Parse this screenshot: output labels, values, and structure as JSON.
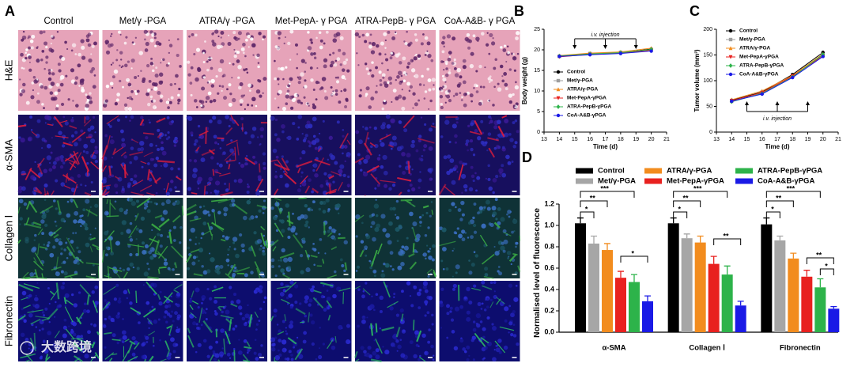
{
  "panel_labels": [
    "A",
    "B",
    "C",
    "D"
  ],
  "image_grid": {
    "columns": [
      "Control",
      "Met/γ -PGA",
      "ATRA/γ -PGA",
      "Met-PepA- γ PGA",
      "ATRA-PepB- γ PGA",
      "CoA-A&B- γ PGA"
    ],
    "rows": [
      "H&E",
      "α-SMA",
      "Collagen Ⅰ",
      "Fibronectin"
    ]
  },
  "watermark": "大数跨境",
  "chart_data": [
    {
      "type": "line",
      "xlabel": "Time (d)",
      "ylabel": "Body weight (g)",
      "x": [
        14,
        16,
        18,
        20
      ],
      "xlim": [
        13,
        21
      ],
      "xticks": [
        13,
        14,
        15,
        16,
        17,
        18,
        19,
        20,
        21
      ],
      "ylim": [
        0,
        25
      ],
      "yticks": [
        0,
        5,
        10,
        15,
        20,
        25
      ],
      "legend": "lower left",
      "annotation": {
        "text": "i.v. injection",
        "x": [
          15,
          17,
          19
        ]
      },
      "series": [
        {
          "name": "Control",
          "color": "#000000",
          "values": [
            18.5,
            19.0,
            19.3,
            20.2
          ]
        },
        {
          "name": "Met/γ-PGA",
          "color": "#9e9e9e",
          "values": [
            18.4,
            19.1,
            19.4,
            20.0
          ]
        },
        {
          "name": "ATRA/γ-PGA",
          "color": "#f28c1e",
          "values": [
            18.6,
            19.2,
            19.5,
            20.4
          ]
        },
        {
          "name": "Met-PepA-γPGA",
          "color": "#e8211f",
          "values": [
            18.3,
            18.9,
            19.2,
            19.9
          ]
        },
        {
          "name": "ATRA-PepB-γPGA",
          "color": "#2db34a",
          "values": [
            18.5,
            19.0,
            19.3,
            20.1
          ]
        },
        {
          "name": "CoA-A&B-γPGA",
          "color": "#1a1ae6",
          "values": [
            18.4,
            18.8,
            19.1,
            19.7
          ]
        }
      ]
    },
    {
      "type": "line",
      "xlabel": "Time (d)",
      "ylabel": "Tumor volume (mm³)",
      "x": [
        14,
        16,
        18,
        20
      ],
      "xlim": [
        13,
        21
      ],
      "xticks": [
        13,
        14,
        15,
        16,
        17,
        18,
        19,
        20,
        21
      ],
      "ylim": [
        0,
        200
      ],
      "yticks": [
        0,
        50,
        100,
        150,
        200
      ],
      "legend": "upper left",
      "annotation": {
        "text": "i.v. injection",
        "x": [
          15,
          17,
          19
        ]
      },
      "series": [
        {
          "name": "Control",
          "color": "#000000",
          "values": [
            62,
            78,
            112,
            155
          ]
        },
        {
          "name": "Met/γ-PGA",
          "color": "#9e9e9e",
          "values": [
            60,
            76,
            108,
            150
          ]
        },
        {
          "name": "ATRA/γ-PGA",
          "color": "#f28c1e",
          "values": [
            63,
            80,
            110,
            152
          ]
        },
        {
          "name": "Met-PepA-γPGA",
          "color": "#e8211f",
          "values": [
            61,
            77,
            109,
            148
          ]
        },
        {
          "name": "ATRA-PepB-γPGA",
          "color": "#2db34a",
          "values": [
            59,
            75,
            107,
            151
          ]
        },
        {
          "name": "CoA-A&B-γPGA",
          "color": "#1a1ae6",
          "values": [
            60,
            74,
            106,
            147
          ]
        }
      ]
    },
    {
      "type": "bar",
      "ylabel": "Normalised level of fluorescence",
      "categories": [
        "α-SMA",
        "Collagen Ⅰ",
        "Fibronectin"
      ],
      "ylim": [
        0,
        1.2
      ],
      "yticks": [
        {
          "value": 0,
          "label": "0.0"
        },
        0.2,
        0.4,
        0.6,
        0.8,
        {
          "value": 1,
          "label": "1.0"
        },
        1.2
      ],
      "legend": "top",
      "significance": [
        [
          "*",
          "**",
          "***",
          "*"
        ],
        [
          "*",
          "**",
          "***",
          "**"
        ],
        [
          "*",
          "**",
          "***",
          "**",
          "*"
        ]
      ],
      "series": [
        {
          "name": "Control",
          "color": "#000000",
          "values": [
            1.02,
            1.02,
            1.01
          ],
          "errors": [
            0.05,
            0.05,
            0.06
          ]
        },
        {
          "name": "Met/γ-PGA",
          "color": "#a6a6a6",
          "values": [
            0.83,
            0.88,
            0.86
          ],
          "errors": [
            0.07,
            0.04,
            0.04
          ]
        },
        {
          "name": "ATRA/γ-PGA",
          "color": "#f28c1e",
          "values": [
            0.77,
            0.84,
            0.69
          ],
          "errors": [
            0.06,
            0.06,
            0.05
          ]
        },
        {
          "name": "Met-PepA-γPGA",
          "color": "#e8211f",
          "values": [
            0.51,
            0.64,
            0.52
          ],
          "errors": [
            0.06,
            0.07,
            0.06
          ]
        },
        {
          "name": "ATRA-PepB-γPGA",
          "color": "#2db34a",
          "values": [
            0.47,
            0.54,
            0.42
          ],
          "errors": [
            0.07,
            0.08,
            0.08
          ]
        },
        {
          "name": "CoA-A&B-γPGA",
          "color": "#1a1ae6",
          "values": [
            0.29,
            0.25,
            0.22
          ],
          "errors": [
            0.05,
            0.04,
            0.02
          ]
        }
      ]
    }
  ]
}
